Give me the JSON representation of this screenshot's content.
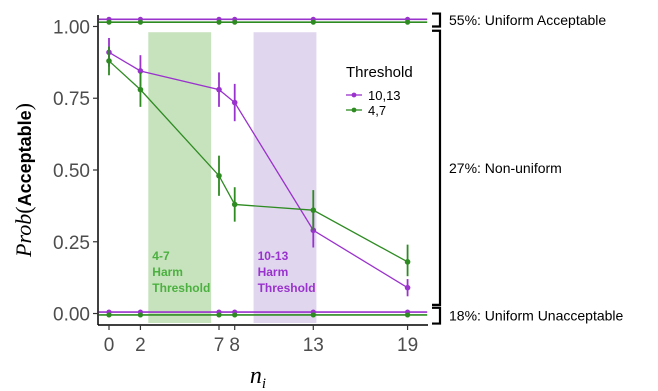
{
  "chart_data": {
    "type": "line",
    "ylabel": {
      "italic_part": "Prob",
      "paren_open": "(",
      "bold_part": "Acceptable",
      "paren_close": ")"
    },
    "xlabel": {
      "main": "n",
      "sub": "i"
    },
    "xlim": [
      -0.7,
      20.3
    ],
    "ylim": [
      -0.04,
      1.04
    ],
    "x_ticks": [
      0,
      2,
      7,
      8,
      13,
      19
    ],
    "y_ticks": [
      0.0,
      0.25,
      0.5,
      0.75,
      1.0
    ],
    "y_tick_labels": [
      "0.00",
      "0.25",
      "0.50",
      "0.75",
      "1.00"
    ],
    "grid": false,
    "legend": {
      "title": "Threshold",
      "placement": "top-right",
      "entries": [
        "10,13",
        "4,7"
      ]
    },
    "series": [
      {
        "name": "10,13",
        "color": "#9a32cd",
        "points": [
          {
            "x": 0,
            "y": 0.91,
            "lo": 0.86,
            "hi": 0.96
          },
          {
            "x": 2,
            "y": 0.845,
            "lo": 0.79,
            "hi": 0.9
          },
          {
            "x": 7,
            "y": 0.78,
            "lo": 0.72,
            "hi": 0.84
          },
          {
            "x": 8,
            "y": 0.735,
            "lo": 0.67,
            "hi": 0.8
          },
          {
            "x": 13,
            "y": 0.29,
            "lo": 0.23,
            "hi": 0.35
          },
          {
            "x": 19,
            "y": 0.09,
            "lo": 0.06,
            "hi": 0.12
          }
        ]
      },
      {
        "name": "4,7",
        "color": "#2e8b22",
        "points": [
          {
            "x": 0,
            "y": 0.88,
            "lo": 0.83,
            "hi": 0.93
          },
          {
            "x": 2,
            "y": 0.78,
            "lo": 0.72,
            "hi": 0.84
          },
          {
            "x": 7,
            "y": 0.48,
            "lo": 0.41,
            "hi": 0.55
          },
          {
            "x": 8,
            "y": 0.38,
            "lo": 0.32,
            "hi": 0.44
          },
          {
            "x": 13,
            "y": 0.36,
            "lo": 0.29,
            "hi": 0.43
          },
          {
            "x": 19,
            "y": 0.18,
            "lo": 0.13,
            "hi": 0.24
          }
        ]
      }
    ],
    "reference_lines": [
      {
        "series": "10,13",
        "y": 1.025
      },
      {
        "series": "4,7",
        "y": 1.015
      },
      {
        "series": "10,13",
        "y": 0.005
      },
      {
        "series": "4,7",
        "y": -0.005
      }
    ],
    "bands": [
      {
        "x_start": 2.5,
        "x_end": 6.5,
        "y_top": 0.98,
        "color": "#c7e3bd",
        "label_lines": [
          "4-7",
          "Harm",
          "Threshold"
        ],
        "label_color": "#4cb040"
      },
      {
        "x_start": 9.2,
        "x_end": 13.2,
        "y_top": 0.98,
        "color": "#e0d7ee",
        "label_lines": [
          "10-13",
          "Harm",
          "Threshold"
        ],
        "label_color": "#9a32cd"
      }
    ],
    "brackets": [
      {
        "y_top": 1.045,
        "y_bottom": 1.0,
        "label": "55%: Uniform Acceptable"
      },
      {
        "y_top": 0.985,
        "y_bottom": 0.03,
        "label": "27%: Non-uniform"
      },
      {
        "y_top": 0.02,
        "y_bottom": -0.035,
        "label": "18%: Uniform Unacceptable"
      }
    ]
  }
}
